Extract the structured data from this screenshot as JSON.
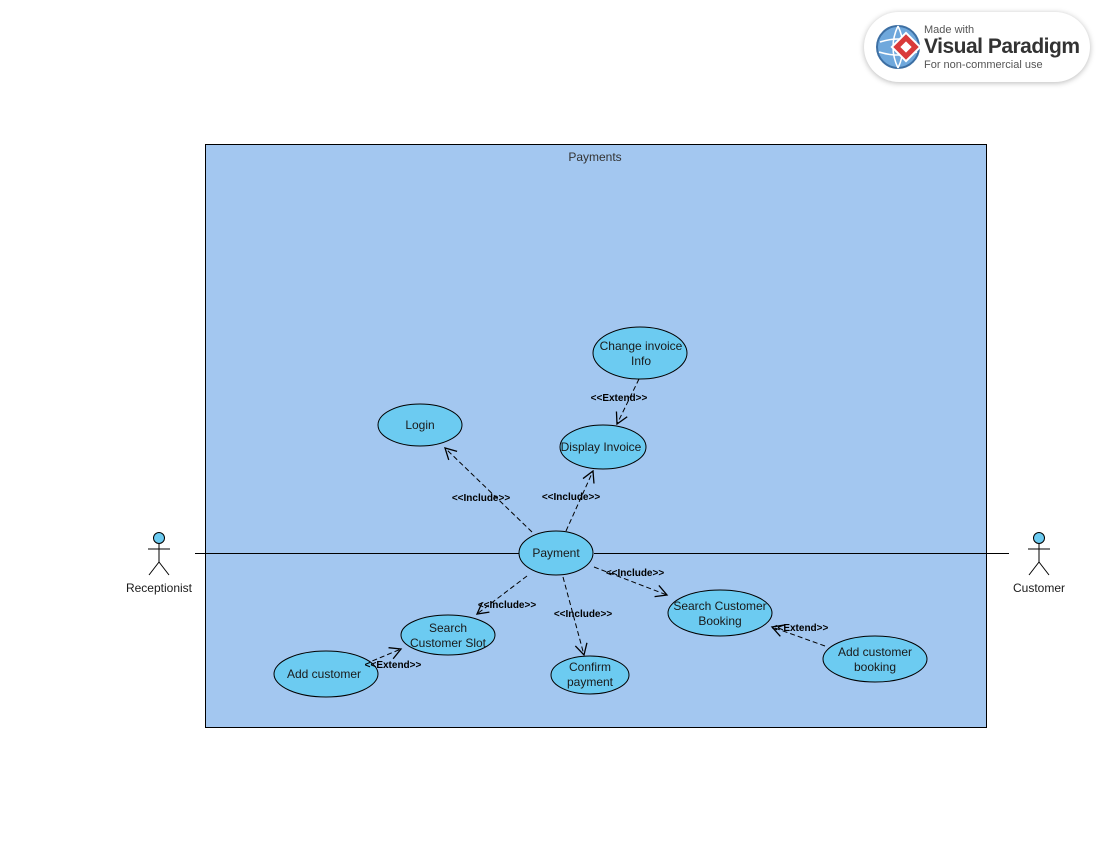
{
  "system": {
    "title": "Payments"
  },
  "actors": {
    "left": "Receptionist",
    "right": "Customer"
  },
  "use_cases": {
    "payment": "Payment",
    "login": "Login",
    "display_invoice": "Display Invoice",
    "change_invoice_line1": "Change invoice",
    "change_invoice_line2": "Info",
    "search_slot_line1": "Search",
    "search_slot_line2": "Customer Slot",
    "confirm_payment_line1": "Confirm",
    "confirm_payment_line2": "payment",
    "search_booking_line1": "Search Customer",
    "search_booking_line2": "Booking",
    "add_customer": "Add customer",
    "add_booking_line1": "Add customer",
    "add_booking_line2": "booking"
  },
  "relations": {
    "include_login": "<<Include>>",
    "include_display": "<<Include>>",
    "include_search_slot": "<<Include>>",
    "include_confirm": "<<Include>>",
    "include_search_booking": "<<Include>>",
    "extend_change_invoice": "<<Extend>>",
    "extend_add_customer": "<<Extend>>",
    "extend_add_booking": "<<Extend>>"
  },
  "watermark": {
    "made_with": "Made with",
    "brand": "Visual Paradigm",
    "note": "For non-commercial use"
  },
  "colors": {
    "system_fill": "#a3c7f0",
    "use_case_fill": "#6ccbf1",
    "actor_head": "#6ccbf1",
    "line": "#000000"
  }
}
